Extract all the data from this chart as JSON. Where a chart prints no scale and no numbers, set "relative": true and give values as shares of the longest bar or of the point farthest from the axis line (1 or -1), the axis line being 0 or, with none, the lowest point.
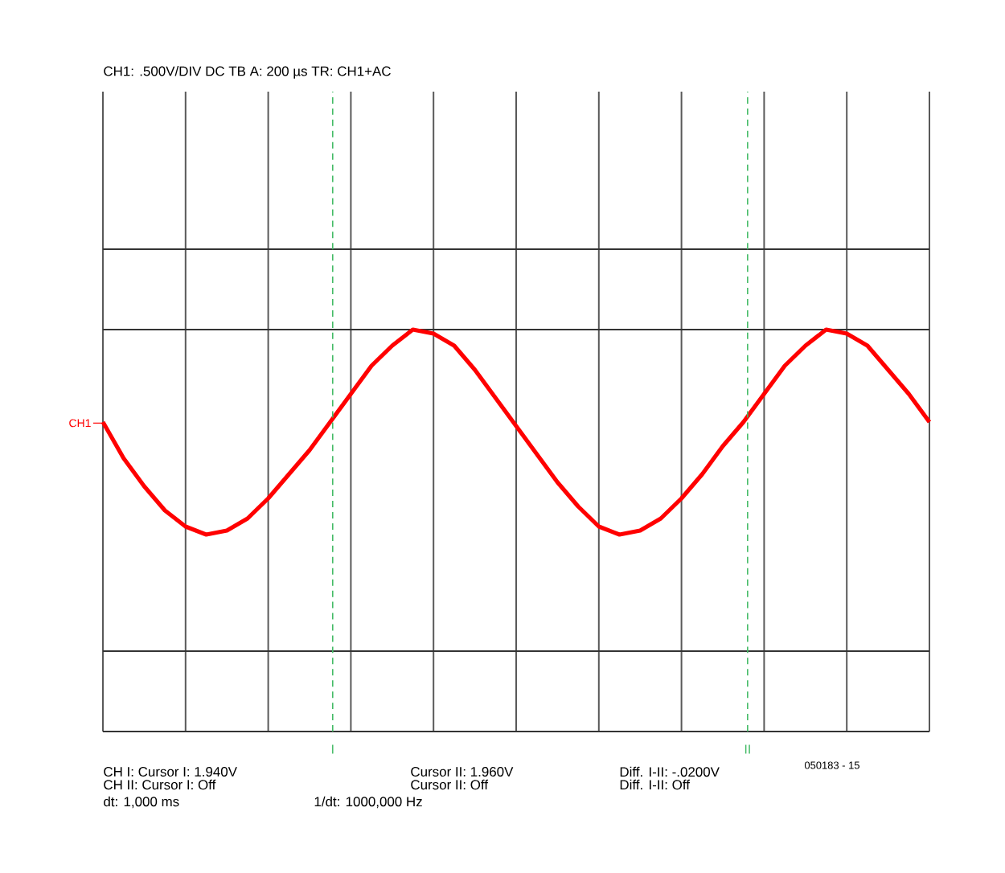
{
  "chart_data": {
    "type": "line",
    "title": "CH1: .500V/DIV DC     TB A: 200 µs  TR: CH1+AC",
    "relative": true,
    "categories": [
      null,
      null,
      null,
      null,
      null,
      null,
      null,
      null,
      null,
      null,
      null,
      null,
      null,
      null,
      null,
      null,
      null,
      null,
      null,
      null,
      null,
      null,
      null,
      null,
      null,
      null,
      null,
      null,
      null,
      null,
      null,
      null,
      null,
      null,
      null,
      null,
      null,
      null,
      null,
      null,
      null
    ],
    "series": [
      {
        "color": "#ff0000",
        "values": [
          0.77,
          0.68,
          0.61,
          0.55,
          0.51,
          0.49,
          0.5,
          0.53,
          0.58,
          0.64,
          0.7,
          0.77,
          0.84,
          0.91,
          0.96,
          1.0,
          0.99,
          0.96,
          0.9,
          0.83,
          0.76,
          0.69,
          0.62,
          0.56,
          0.51,
          0.49,
          0.5,
          0.53,
          0.58,
          0.64,
          0.71,
          0.77,
          0.84,
          0.91,
          0.96,
          1.0,
          0.99,
          0.96,
          0.9,
          0.84,
          0.77
        ]
      }
    ],
    "ref_lines": [
      {
        "axis": "y",
        "value": 1.2,
        "color": "#333333"
      },
      {
        "axis": "y",
        "value": 1.0,
        "color": "#333333"
      },
      {
        "axis": "y",
        "value": 0.2,
        "color": "#333333"
      }
    ],
    "annotations": [
      "CH1",
      "I",
      "II",
      "CH I:  Cursor I: 1.940V",
      "Cursor II: 1.960V",
      "Diff. I-II: -.0200V",
      "CH II: Cursor I: Off",
      "Cursor II: Off",
      "Diff. I-II: Off",
      "dt: 1,000 ms",
      "1/dt: 1000,000 Hz",
      "050183 - 15"
    ],
    "grid": "x",
    "marker": "none",
    "line_style": "solid"
  }
}
